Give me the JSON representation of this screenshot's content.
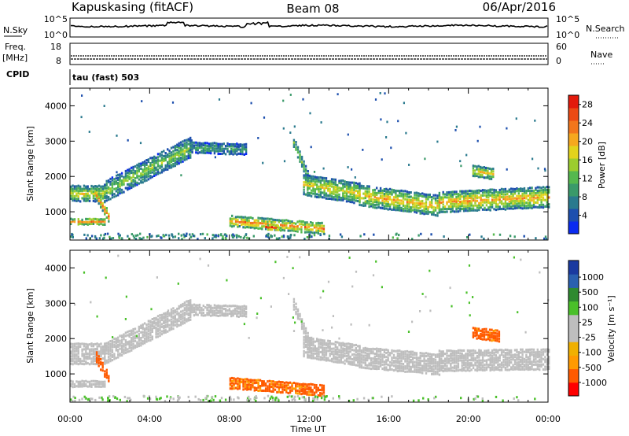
{
  "header": {
    "radar": "Kapuskasing (fitACF)",
    "beam": "Beam 08",
    "date": "06/Apr/2016"
  },
  "strip": {
    "nsky_label": "N.Sky",
    "nsky_ticks": [
      "10^5",
      "10^0"
    ],
    "nsky_right_ticks": [
      "10^5",
      "10^0"
    ],
    "nsearch_label": "N.Search",
    "freq_label": "Freq.",
    "freq_unit": "[MHz]",
    "freq_ticks": [
      "18",
      "8"
    ],
    "nave_ticks": [
      "60",
      "0"
    ],
    "nave_label": "Nave",
    "cpid_label": "CPID",
    "cpid_text": "tau (fast) 503"
  },
  "colors": {
    "power": [
      "#0a2bf0",
      "#1d4fae",
      "#2a7a8e",
      "#3a9a6a",
      "#55b84e",
      "#9ccd2e",
      "#e2d31c",
      "#f6a81e",
      "#f2761c",
      "#ec4a14",
      "#e31a0c"
    ],
    "velocity": [
      "#ff0000",
      "#ff5a00",
      "#ff9a00",
      "#f0b000",
      "#bebebe",
      "#bebebe",
      "#4ac02a",
      "#2e8a30",
      "#2a60b0",
      "#1a3aa0"
    ],
    "ground_scatter": "#bebebe"
  },
  "chart_data": [
    {
      "type": "heatmap",
      "name": "power-panel",
      "ylabel": "Slant Range [km]",
      "yticks": [
        1000,
        2000,
        3000,
        4000
      ],
      "ylim": [
        200,
        4500
      ],
      "xlim": [
        0,
        24
      ],
      "xticks": [
        "00:00",
        "04:00",
        "08:00",
        "12:00",
        "16:00",
        "20:00",
        "00:00"
      ],
      "colorbar": {
        "label": "Power [dB]",
        "range": [
          0,
          30
        ],
        "ticks": [
          4,
          8,
          12,
          16,
          20,
          24,
          28
        ]
      },
      "bands": [
        {
          "t0": 0.0,
          "t1": 1.7,
          "r0": 1550,
          "r1": 1550,
          "w": 200,
          "p": 17
        },
        {
          "t0": 0.0,
          "t1": 1.7,
          "r0": 750,
          "r1": 750,
          "w": 80,
          "p": 22
        },
        {
          "t0": 1.3,
          "t1": 1.9,
          "r0": 1500,
          "r1": 900,
          "w": 120,
          "p": 24
        },
        {
          "t0": 1.7,
          "t1": 6.0,
          "r0": 1600,
          "r1": 2850,
          "w": 300,
          "p": 14
        },
        {
          "t0": 6.0,
          "t1": 8.8,
          "r0": 2850,
          "r1": 2800,
          "w": 160,
          "p": 10
        },
        {
          "t0": 8.0,
          "t1": 12.7,
          "r0": 770,
          "r1": 560,
          "w": 110,
          "p": 22
        },
        {
          "t0": 9.8,
          "t1": 10.4,
          "r0": 600,
          "r1": 580,
          "w": 90,
          "p": 28
        },
        {
          "t0": 11.2,
          "t1": 12.0,
          "r0": 3000,
          "r1": 1900,
          "w": 150,
          "p": 14
        },
        {
          "t0": 11.7,
          "t1": 14.5,
          "r0": 1800,
          "r1": 1550,
          "w": 250,
          "p": 18
        },
        {
          "t0": 14.5,
          "t1": 18.5,
          "r0": 1500,
          "r1": 1200,
          "w": 250,
          "p": 20
        },
        {
          "t0": 18.5,
          "t1": 24.0,
          "r0": 1300,
          "r1": 1450,
          "w": 300,
          "p": 21
        },
        {
          "t0": 20.2,
          "t1": 21.2,
          "r0": 2200,
          "r1": 2100,
          "w": 130,
          "p": 18
        }
      ]
    },
    {
      "type": "heatmap",
      "name": "velocity-panel",
      "ylabel": "Slant Range [km]",
      "yticks": [
        1000,
        2000,
        3000,
        4000
      ],
      "ylim": [
        200,
        4500
      ],
      "xlim": [
        0,
        24
      ],
      "xlabel": "Time UT",
      "xticks": [
        "00:00",
        "04:00",
        "08:00",
        "12:00",
        "16:00",
        "20:00",
        "00:00"
      ],
      "colorbar": {
        "label": "Velocity [m s⁻¹]",
        "ticks": [
          "1000",
          "500",
          "100",
          "25",
          "-25",
          "-100",
          "-500",
          "-1000"
        ]
      },
      "bands": [
        {
          "t0": 0.0,
          "t1": 1.7,
          "r0": 1600,
          "r1": 1600,
          "w": 250,
          "v": 0
        },
        {
          "t0": 0.0,
          "t1": 1.7,
          "r0": 750,
          "r1": 750,
          "w": 80,
          "v": 0
        },
        {
          "t0": 1.3,
          "t1": 1.9,
          "r0": 1500,
          "r1": 900,
          "w": 120,
          "v": -250
        },
        {
          "t0": 1.7,
          "t1": 6.0,
          "r0": 1600,
          "r1": 2850,
          "w": 300,
          "v": 0
        },
        {
          "t0": 6.0,
          "t1": 8.8,
          "r0": 2850,
          "r1": 2800,
          "w": 160,
          "v": 0
        },
        {
          "t0": 8.0,
          "t1": 12.7,
          "r0": 770,
          "r1": 560,
          "w": 110,
          "v": -120
        },
        {
          "t0": 11.2,
          "t1": 12.0,
          "r0": 3000,
          "r1": 1900,
          "w": 150,
          "v": 0
        },
        {
          "t0": 11.7,
          "t1": 14.5,
          "r0": 1800,
          "r1": 1550,
          "w": 250,
          "v": 0
        },
        {
          "t0": 14.5,
          "t1": 18.5,
          "r0": 1500,
          "r1": 1300,
          "w": 250,
          "v": 0
        },
        {
          "t0": 18.5,
          "t1": 24.0,
          "r0": 1400,
          "r1": 1450,
          "w": 300,
          "v": 0
        },
        {
          "t0": 20.2,
          "t1": 21.5,
          "r0": 2200,
          "r1": 2100,
          "w": 130,
          "v": -130
        }
      ]
    }
  ]
}
